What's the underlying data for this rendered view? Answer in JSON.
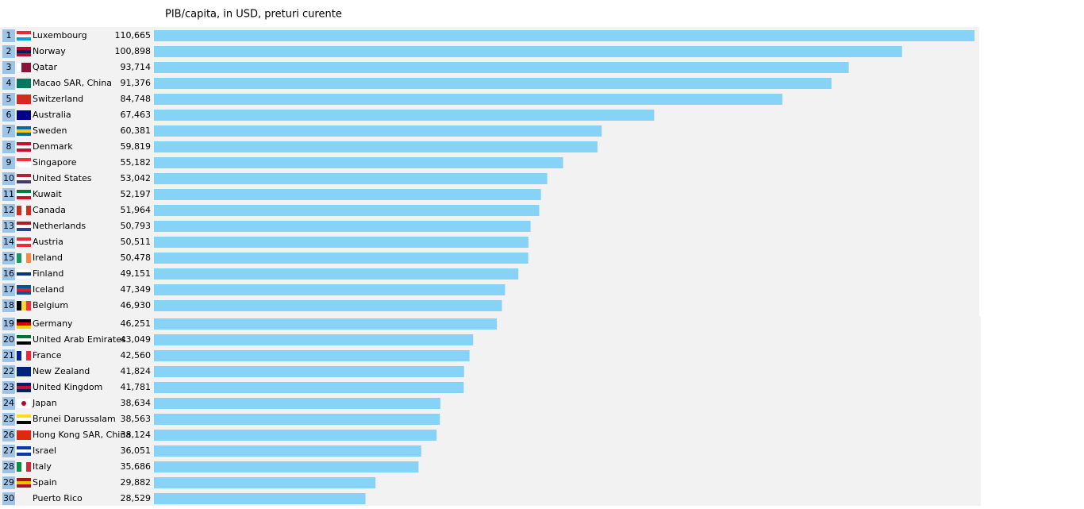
{
  "chart_data": {
    "type": "bar",
    "orientation": "horizontal",
    "title": "PIB/capita, in USD, preturi curente",
    "ranks": [
      1,
      2,
      3,
      4,
      5,
      6,
      7,
      8,
      9,
      10,
      11,
      12,
      13,
      14,
      15,
      16,
      17,
      18,
      19,
      20,
      21,
      22,
      23,
      24,
      25,
      26,
      27,
      28,
      29,
      30
    ],
    "categories": [
      "Luxembourg",
      "Norway",
      "Qatar",
      "Macao SAR, China",
      "Switzerland",
      "Australia",
      "Sweden",
      "Denmark",
      "Singapore",
      "United States",
      "Kuwait",
      "Canada",
      "Netherlands",
      "Austria",
      "Ireland",
      "Finland",
      "Iceland",
      "Belgium",
      "Germany",
      "United Arab Emirates",
      "France",
      "New Zealand",
      "United Kingdom",
      "Japan",
      "Brunei Darussalam",
      "Hong Kong SAR, China",
      "Israel",
      "Italy",
      "Spain",
      "Puerto Rico"
    ],
    "values": [
      110665,
      100898,
      93714,
      91376,
      84748,
      67463,
      60381,
      59819,
      55182,
      53042,
      52197,
      51964,
      50793,
      50511,
      50478,
      49151,
      47349,
      46930,
      46251,
      43049,
      42560,
      41824,
      41781,
      38634,
      38563,
      38124,
      36051,
      35686,
      29882,
      28529
    ],
    "value_labels": [
      "110,665",
      "100,898",
      "93,714",
      "91,376",
      "84,748",
      "67,463",
      "60,381",
      "59,819",
      "55,182",
      "53,042",
      "52,197",
      "51,964",
      "50,793",
      "50,511",
      "50,478",
      "49,151",
      "47,349",
      "46,930",
      "46,251",
      "43,049",
      "42,560",
      "41,824",
      "41,781",
      "38,634",
      "38,563",
      "38,124",
      "36,051",
      "35,686",
      "29,882",
      "28,529"
    ],
    "color": "#87d3f8"
  }
}
